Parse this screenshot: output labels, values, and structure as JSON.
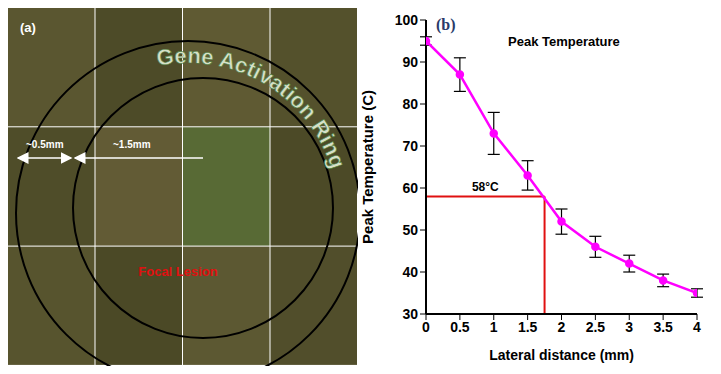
{
  "chart_data": {
    "type": "line",
    "title": "Peak Temperature",
    "x_label": "Lateral distance (mm)",
    "y_label": "Peak Temperature (C)",
    "x": [
      0,
      0.5,
      1,
      1.5,
      2,
      2.5,
      3,
      3.5,
      4
    ],
    "values": [
      95,
      87,
      73,
      63,
      52,
      46,
      42,
      38,
      35
    ],
    "error": [
      1,
      4,
      5,
      3.5,
      3,
      2.5,
      2,
      1.5,
      1
    ],
    "color": "#ff00ff",
    "marker": "circle",
    "xlim": [
      0,
      4
    ],
    "xticks": [
      0,
      0.5,
      1,
      1.5,
      2,
      2.5,
      3,
      3.5,
      4
    ],
    "ylim": [
      30,
      100
    ],
    "yticks": [
      30,
      40,
      50,
      60,
      70,
      80,
      90,
      100
    ],
    "grid": false,
    "annotations": [
      {
        "text": "(b)"
      },
      {
        "text": "58°C",
        "x": 1.75,
        "y": 58
      }
    ]
  },
  "panel_a": {
    "label": "(a)",
    "ring_label": "Gene Activation Ring",
    "inner_label": "Focal Lesion",
    "measurements": [
      "~0.5mm",
      "~1.5mm"
    ]
  }
}
